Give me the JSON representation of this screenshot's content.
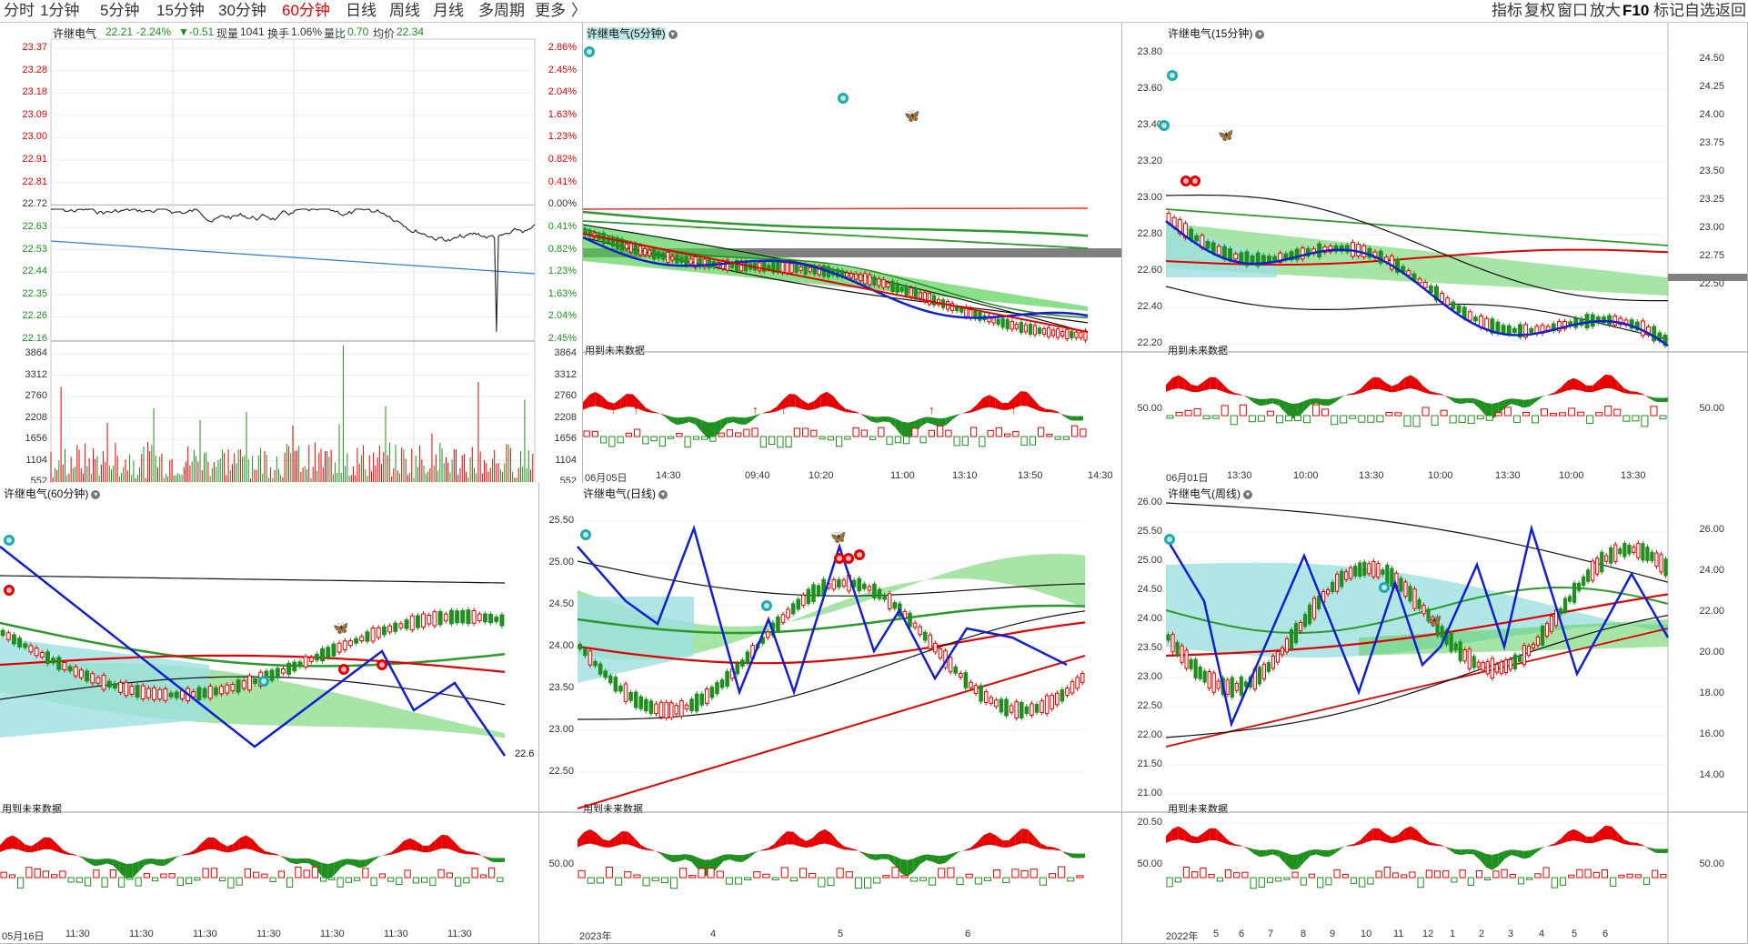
{
  "topbar": {
    "periods": [
      "分时",
      "1分钟",
      "5分钟",
      "15分钟",
      "30分钟",
      "60分钟",
      "日线",
      "周线",
      "月线",
      "多周期",
      "更多"
    ],
    "active_period": "60分钟",
    "tools": [
      "指标",
      "复权",
      "窗口",
      "放大",
      "F10",
      "标记",
      "自选",
      "返回"
    ]
  },
  "intraday": {
    "title": "许继电气",
    "price": "22.21",
    "change_pct": "-2.24%",
    "change": "▼-0.51",
    "volume_label": "现量",
    "volume": "1041",
    "turnover_label": "换手",
    "turnover": "1.06%",
    "ratio_label": "量比",
    "ratio": "0.70",
    "avg_label": "均价",
    "avg": "22.34",
    "price_levels": [
      "23.37",
      "23.28",
      "23.18",
      "23.09",
      "23.00",
      "22.91",
      "22.81",
      "22.72",
      "22.63",
      "22.53",
      "22.44",
      "22.35",
      "22.26",
      "22.16"
    ],
    "pct_levels": [
      "2.86%",
      "2.45%",
      "2.04%",
      "1.63%",
      "1.23%",
      "0.82%",
      "0.41%",
      "0.00%",
      "0.41%",
      "0.82%",
      "1.23%",
      "1.63%",
      "2.04%",
      "2.45%"
    ],
    "vol_levels": [
      "3864",
      "3312",
      "2760",
      "2208",
      "1656",
      "1104",
      "552"
    ]
  },
  "p5": {
    "title": "许继电气(5分钟)",
    "future": "用到未来数据",
    "xlabels": [
      "06月05日",
      "14:30",
      "09:40",
      "10:20",
      "11:00",
      "13:10",
      "13:50",
      "14:30"
    ]
  },
  "p15": {
    "title": "许继电气(15分钟)",
    "future": "用到未来数据",
    "left_levels": [
      "23.80",
      "23.60",
      "23.40",
      "23.20",
      "23.00",
      "22.80",
      "22.60",
      "22.40",
      "22.20"
    ],
    "right_levels": [
      "24.50",
      "24.25",
      "24.00",
      "23.75",
      "23.50",
      "23.25",
      "23.00",
      "22.75",
      "22.50"
    ],
    "ind_left": "50.00",
    "ind_right": "50.00",
    "xlabels": [
      "06月01日",
      "13:30",
      "10:00",
      "13:30",
      "10:00",
      "13:30",
      "10:00",
      "13:30"
    ]
  },
  "p60": {
    "title": "许继电气(60分钟)",
    "future": "用到未来数据",
    "price_tag": "22.6",
    "xlabels": [
      "05月16日",
      "11:30",
      "11:30",
      "11:30",
      "11:30",
      "11:30",
      "11:30",
      "11:30"
    ]
  },
  "pday": {
    "title": "许继电气(日线)",
    "future": "用到未来数据",
    "left_levels": [
      "25.50",
      "25.00",
      "24.50",
      "24.00",
      "23.50",
      "23.00",
      "22.50"
    ],
    "ind_left": "50.00",
    "xlabels": [
      "2023年",
      "4",
      "5",
      "6"
    ]
  },
  "pweek": {
    "title": "许继电气(周线)",
    "future": "用到未来数据",
    "left_levels": [
      "26.00",
      "25.50",
      "25.00",
      "24.50",
      "24.00",
      "23.50",
      "23.00",
      "22.50",
      "22.00",
      "21.50",
      "21.00",
      "20.50"
    ],
    "right_levels": [
      "26.00",
      "24.00",
      "22.00",
      "20.00",
      "18.00",
      "16.00",
      "14.00"
    ],
    "ind_left": "50.00",
    "ind_right": "50.00",
    "xlabels": [
      "2022年",
      "5",
      "6",
      "7",
      "8",
      "9",
      "10",
      "11",
      "12",
      "1",
      "2",
      "3",
      "4",
      "5",
      "6"
    ]
  },
  "colors": {
    "up": "#e60000",
    "down": "#1f8f1f",
    "wave": "#1020d0",
    "mid_cloud": "#7ad97a",
    "low_cloud": "#9ee0e0",
    "avg_line": "#2a7ad8"
  }
}
